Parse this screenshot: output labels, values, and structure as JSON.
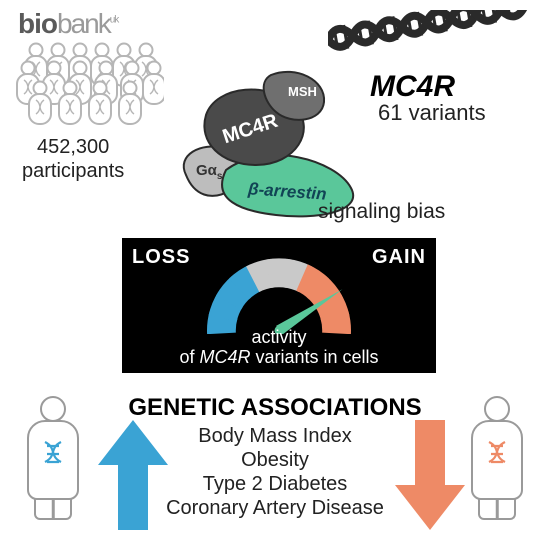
{
  "logo": {
    "bold": "bio",
    "thin": "bank",
    "sup": "uk",
    "color_bold": "#5a5a5a",
    "color_thin": "#9a9a9a"
  },
  "participants": {
    "count": "452,300",
    "label": "participants"
  },
  "gene": {
    "name": "MC4R",
    "variants_count": "61 variants"
  },
  "signaling": {
    "msh": "MSH",
    "mc4r": "MC4R",
    "galpha": "Gα",
    "galpha_sub": "s",
    "barrestin": "β-arrestin",
    "label": "signaling bias",
    "colors": {
      "msh": "#6f6f6f",
      "mc4r": "#4a4a4a",
      "galpha": "#bdbdbd",
      "barrestin": "#5ac79a",
      "outline": "#2a2a2a"
    }
  },
  "gauge": {
    "loss_label": "LOSS",
    "gain_label": "GAIN",
    "caption_line1": "activity",
    "caption_line2_prefix": "of ",
    "caption_line2_gene": "MC4R",
    "caption_line2_suffix": " variants in cells",
    "background": "#000000",
    "colors": {
      "loss": "#3aa3d4",
      "neutral": "#c9c9c9",
      "gain": "#ee8a66",
      "needle": "#5ac79a",
      "tick_gap": "#000000"
    },
    "needle_angle_deg": 33
  },
  "assoc": {
    "title": "GENETIC ASSOCIATIONS",
    "items": [
      "Body Mass Index",
      "Obesity",
      "Type 2 Diabetes",
      "Coronary Artery Disease"
    ]
  },
  "arrows": {
    "up_color": "#3aa3d4",
    "down_color": "#ee8a66"
  },
  "persons": {
    "left_dna_color": "#3aa3d4",
    "right_dna_color": "#ee8a66",
    "outline": "#9a9a9a"
  },
  "helix": {
    "color_dark": "#2a2a2a",
    "color_light": "#ffffff"
  }
}
